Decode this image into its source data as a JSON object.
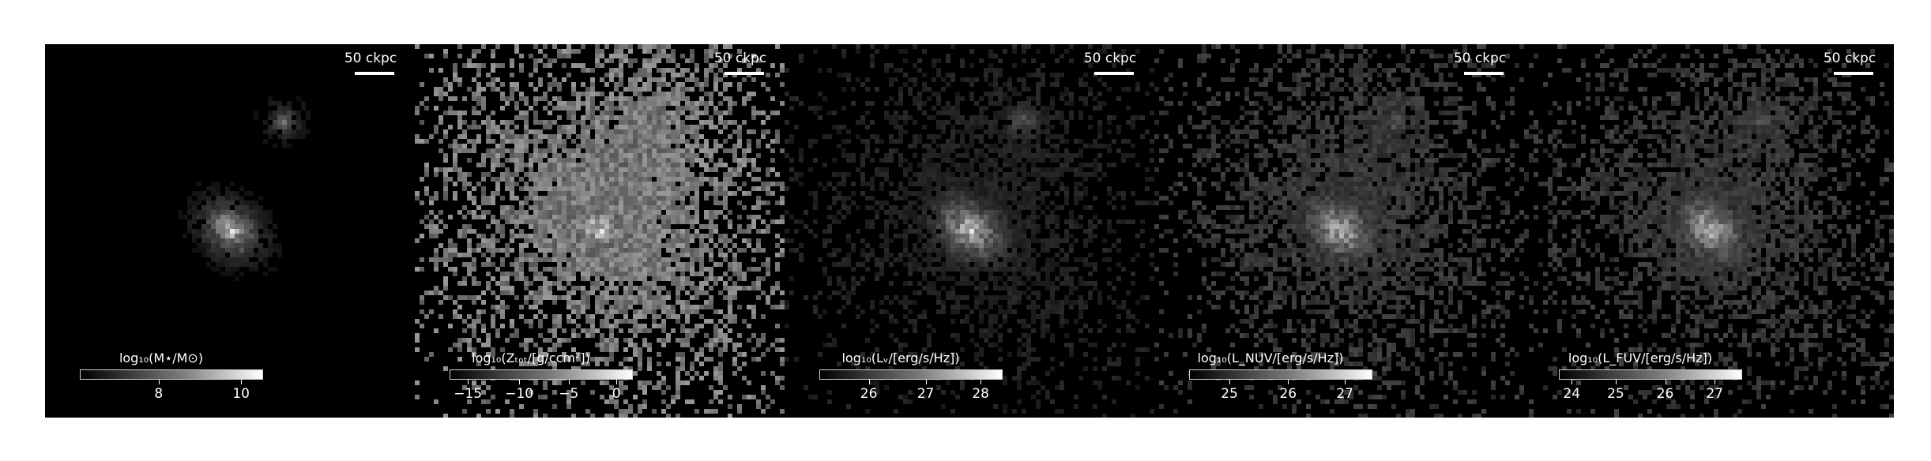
{
  "panels": [
    {
      "scale_label": "50 ckpc",
      "colorbar": {
        "label": "log₁₀(M⋆/M⊙)",
        "ticks": [
          "8",
          "10"
        ],
        "tick_fracs": [
          0.43,
          0.88
        ]
      },
      "intensity": {
        "core": 1.0,
        "spread": 0.55,
        "floor": 0.02
      }
    },
    {
      "scale_label": "50 ckpc",
      "colorbar": {
        "label": "log₁₀(Zₜₒₜ/[g/ccm²])",
        "ticks": [
          "−15",
          "−10",
          "−5",
          "0"
        ],
        "tick_fracs": [
          0.1,
          0.38,
          0.65,
          0.91
        ]
      },
      "intensity": {
        "core": 0.95,
        "spread": 1.0,
        "floor": 0.55
      }
    },
    {
      "scale_label": "50 ckpc",
      "colorbar": {
        "label": "log₁₀(Lᵥ/[erg/s/Hz])",
        "ticks": [
          "26",
          "27",
          "28"
        ],
        "tick_fracs": [
          0.27,
          0.58,
          0.88
        ]
      },
      "intensity": {
        "core": 0.95,
        "spread": 0.75,
        "floor": 0.15
      }
    },
    {
      "scale_label": "50 ckpc",
      "colorbar": {
        "label": "log₁₀(L_NUV/[erg/s/Hz])",
        "ticks": [
          "25",
          "26",
          "27"
        ],
        "tick_fracs": [
          0.22,
          0.54,
          0.85
        ]
      },
      "intensity": {
        "core": 0.9,
        "spread": 0.85,
        "floor": 0.25
      }
    },
    {
      "scale_label": "50 ckpc",
      "colorbar": {
        "label": "log₁₀(L_FUV/[erg/s/Hz])",
        "ticks": [
          "24",
          "25",
          "26",
          "27"
        ],
        "tick_fracs": [
          0.07,
          0.31,
          0.58,
          0.85
        ]
      },
      "intensity": {
        "core": 0.9,
        "spread": 0.85,
        "floor": 0.25
      }
    }
  ]
}
